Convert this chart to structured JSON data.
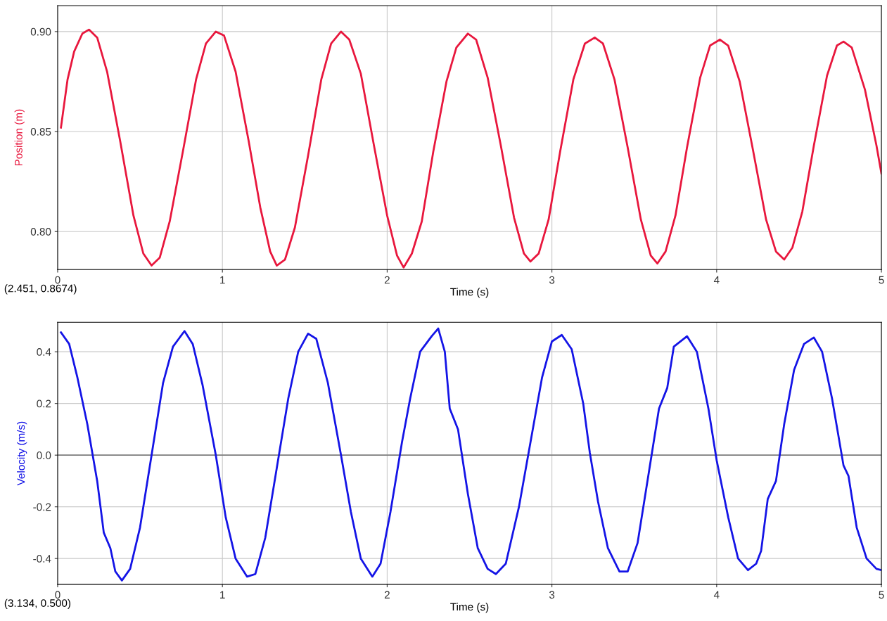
{
  "chart_data": [
    {
      "type": "line",
      "xlabel": "Time (s)",
      "ylabel": "Position (m)",
      "xlim": [
        0,
        5
      ],
      "ylim": [
        0.781,
        0.913
      ],
      "xticks": [
        0,
        1,
        2,
        3,
        4,
        5
      ],
      "yticks": [
        {
          "value": 0.8,
          "label": "0.80"
        },
        {
          "value": 0.85,
          "label": "0.85"
        },
        {
          "value": 0.9,
          "label": "0.90"
        }
      ],
      "grid": true,
      "annotations": [
        "(2.451, 0.8674)"
      ],
      "x": [
        0.02,
        0.06,
        0.1,
        0.15,
        0.19,
        0.24,
        0.3,
        0.38,
        0.46,
        0.52,
        0.57,
        0.62,
        0.68,
        0.76,
        0.84,
        0.9,
        0.96,
        1.01,
        1.08,
        1.16,
        1.23,
        1.29,
        1.33,
        1.38,
        1.44,
        1.52,
        1.6,
        1.66,
        1.72,
        1.77,
        1.84,
        1.92,
        2.0,
        2.06,
        2.1,
        2.15,
        2.21,
        2.28,
        2.36,
        2.42,
        2.49,
        2.54,
        2.61,
        2.69,
        2.77,
        2.83,
        2.87,
        2.92,
        2.98,
        3.05,
        3.13,
        3.2,
        3.26,
        3.31,
        3.38,
        3.46,
        3.54,
        3.6,
        3.64,
        3.69,
        3.75,
        3.82,
        3.9,
        3.96,
        4.02,
        4.07,
        4.14,
        4.22,
        4.3,
        4.36,
        4.41,
        4.46,
        4.52,
        4.59,
        4.67,
        4.73,
        4.77,
        4.82,
        4.9,
        4.97,
        5.0
      ],
      "series": [
        {
          "color": "#e8173d",
          "values": [
            0.852,
            0.876,
            0.89,
            0.899,
            0.901,
            0.897,
            0.88,
            0.845,
            0.808,
            0.789,
            0.783,
            0.787,
            0.805,
            0.84,
            0.876,
            0.894,
            0.9,
            0.898,
            0.88,
            0.845,
            0.812,
            0.79,
            0.783,
            0.786,
            0.802,
            0.838,
            0.876,
            0.894,
            0.9,
            0.896,
            0.879,
            0.843,
            0.808,
            0.788,
            0.782,
            0.789,
            0.805,
            0.84,
            0.875,
            0.892,
            0.899,
            0.896,
            0.877,
            0.843,
            0.807,
            0.789,
            0.785,
            0.789,
            0.806,
            0.84,
            0.876,
            0.894,
            0.897,
            0.894,
            0.876,
            0.842,
            0.806,
            0.788,
            0.784,
            0.79,
            0.808,
            0.842,
            0.877,
            0.893,
            0.896,
            0.893,
            0.875,
            0.841,
            0.806,
            0.79,
            0.786,
            0.792,
            0.81,
            0.843,
            0.878,
            0.893,
            0.895,
            0.892,
            0.871,
            0.843,
            0.829
          ]
        }
      ]
    },
    {
      "type": "line",
      "xlabel": "Time (s)",
      "ylabel": "Velocity (m/s)",
      "xlim": [
        0,
        5
      ],
      "ylim": [
        -0.5,
        0.514
      ],
      "xticks": [
        0,
        1,
        2,
        3,
        4,
        5
      ],
      "yticks": [
        {
          "value": -0.4,
          "label": "-0.4"
        },
        {
          "value": -0.2,
          "label": "-0.2"
        },
        {
          "value": 0,
          "label": "0.0"
        },
        {
          "value": 0.2,
          "label": "0.2"
        },
        {
          "value": 0.4,
          "label": "0.4"
        }
      ],
      "grid": true,
      "annotations": [
        "(3.134, 0.500)"
      ],
      "ref_lines": [
        {
          "axis": "y",
          "value": 0,
          "color": "#808080"
        }
      ],
      "x": [
        0.02,
        0.07,
        0.12,
        0.18,
        0.24,
        0.28,
        0.32,
        0.35,
        0.39,
        0.44,
        0.5,
        0.57,
        0.64,
        0.7,
        0.77,
        0.82,
        0.88,
        0.96,
        1.02,
        1.08,
        1.15,
        1.2,
        1.26,
        1.33,
        1.4,
        1.46,
        1.52,
        1.57,
        1.64,
        1.72,
        1.78,
        1.84,
        1.91,
        1.96,
        2.02,
        2.09,
        2.14,
        2.2,
        2.27,
        2.31,
        2.35,
        2.38,
        2.43,
        2.49,
        2.55,
        2.61,
        2.66,
        2.72,
        2.8,
        2.87,
        2.94,
        3.0,
        3.06,
        3.12,
        3.19,
        3.23,
        3.28,
        3.34,
        3.41,
        3.46,
        3.52,
        3.59,
        3.65,
        3.7,
        3.74,
        3.82,
        3.88,
        3.95,
        4.0,
        4.07,
        4.13,
        4.19,
        4.24,
        4.27,
        4.31,
        4.36,
        4.41,
        4.47,
        4.53,
        4.59,
        4.64,
        4.7,
        4.77,
        4.8,
        4.85,
        4.91,
        4.97,
        5.0
      ],
      "series": [
        {
          "color": "#1414e6",
          "values": [
            0.475,
            0.43,
            0.3,
            0.12,
            -0.1,
            -0.3,
            -0.36,
            -0.45,
            -0.485,
            -0.44,
            -0.28,
            0.0,
            0.28,
            0.42,
            0.48,
            0.43,
            0.27,
            0.0,
            -0.24,
            -0.4,
            -0.47,
            -0.46,
            -0.32,
            -0.05,
            0.22,
            0.4,
            0.47,
            0.45,
            0.28,
            0.0,
            -0.22,
            -0.4,
            -0.47,
            -0.42,
            -0.22,
            0.05,
            0.22,
            0.4,
            0.46,
            0.49,
            0.4,
            0.18,
            0.1,
            -0.15,
            -0.36,
            -0.44,
            -0.46,
            -0.42,
            -0.2,
            0.05,
            0.3,
            0.44,
            0.465,
            0.41,
            0.2,
            0.01,
            -0.18,
            -0.36,
            -0.45,
            -0.45,
            -0.34,
            -0.06,
            0.18,
            0.26,
            0.42,
            0.46,
            0.4,
            0.18,
            -0.02,
            -0.24,
            -0.4,
            -0.445,
            -0.42,
            -0.37,
            -0.17,
            -0.1,
            0.12,
            0.33,
            0.43,
            0.455,
            0.4,
            0.22,
            -0.04,
            -0.08,
            -0.28,
            -0.4,
            -0.44,
            -0.445
          ]
        }
      ]
    }
  ]
}
